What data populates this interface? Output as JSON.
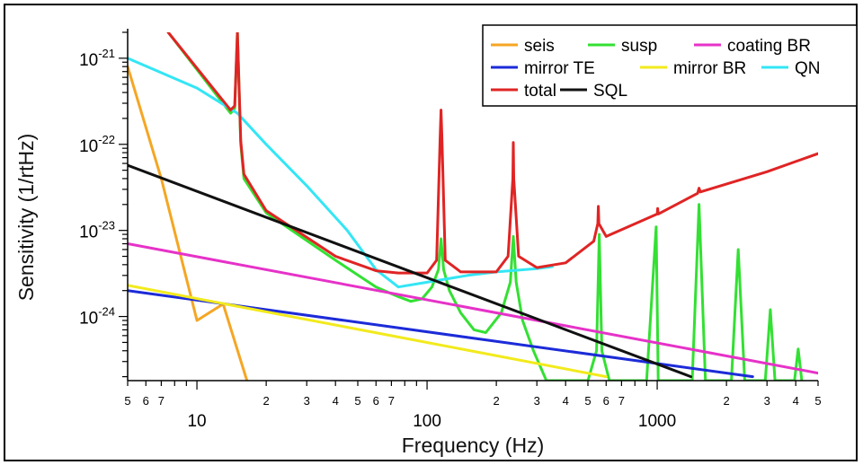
{
  "chart_data": {
    "type": "line",
    "xlabel": "Frequency (Hz)",
    "ylabel": "Sensitivity (1/rtHz)",
    "xscale": "log",
    "yscale": "log",
    "xlim": [
      5,
      5000
    ],
    "ylim": [
      1.8e-25,
      2e-21
    ],
    "grid": false,
    "legend_position": "top-right",
    "x_tick_labels": [
      {
        "value": 5,
        "label": "5",
        "major": false
      },
      {
        "value": 6,
        "label": "6",
        "major": false
      },
      {
        "value": 7,
        "label": "7",
        "major": false
      },
      {
        "value": 10,
        "label": "10",
        "major": true
      },
      {
        "value": 20,
        "label": "2",
        "major": false
      },
      {
        "value": 30,
        "label": "3",
        "major": false
      },
      {
        "value": 40,
        "label": "4",
        "major": false
      },
      {
        "value": 50,
        "label": "5",
        "major": false
      },
      {
        "value": 60,
        "label": "6",
        "major": false
      },
      {
        "value": 70,
        "label": "7",
        "major": false
      },
      {
        "value": 100,
        "label": "100",
        "major": true
      },
      {
        "value": 200,
        "label": "2",
        "major": false
      },
      {
        "value": 300,
        "label": "3",
        "major": false
      },
      {
        "value": 400,
        "label": "4",
        "major": false
      },
      {
        "value": 500,
        "label": "5",
        "major": false
      },
      {
        "value": 600,
        "label": "6",
        "major": false
      },
      {
        "value": 700,
        "label": "7",
        "major": false
      },
      {
        "value": 1000,
        "label": "1000",
        "major": true
      },
      {
        "value": 2000,
        "label": "2",
        "major": false
      },
      {
        "value": 3000,
        "label": "3",
        "major": false
      },
      {
        "value": 4000,
        "label": "4",
        "major": false
      },
      {
        "value": 5000,
        "label": "5",
        "major": false
      }
    ],
    "y_tick_labels": [
      {
        "exp": -21,
        "mantissa": "10",
        "power": "-21"
      },
      {
        "exp": -22,
        "mantissa": "10",
        "power": "-22"
      },
      {
        "exp": -23,
        "mantissa": "10",
        "power": "-23"
      },
      {
        "exp": -24,
        "mantissa": "10",
        "power": "-24"
      }
    ],
    "series": [
      {
        "name": "seis",
        "color": "#f5a623",
        "x": [
          5,
          7,
          10,
          13,
          16.5
        ],
        "y": [
          8e-22,
          4e-23,
          9e-25,
          1.4e-24,
          1.8e-25
        ]
      },
      {
        "name": "susp",
        "color": "#33e033",
        "x": [
          7.5,
          14,
          14.6,
          15,
          15.5,
          16,
          20,
          40,
          60,
          75,
          85,
          95,
          105,
          112,
          115,
          118,
          125,
          140,
          160,
          180,
          210,
          230,
          237,
          244,
          260,
          290,
          330,
          500,
          545,
          560,
          575,
          620,
          900,
          990,
          1010,
          1100,
          1420,
          1520,
          1620,
          2100,
          2250,
          2400,
          2950,
          3100,
          3250,
          3950,
          4100,
          4250
        ],
        "y": [
          2e-21,
          2.3e-22,
          2.6e-22,
          2e-21,
          1e-22,
          4e-23,
          1.6e-23,
          4.5e-24,
          2.2e-24,
          1.7e-24,
          1.5e-24,
          1.6e-24,
          2.2e-24,
          3.5e-24,
          8e-24,
          3.5e-24,
          2e-24,
          1.1e-24,
          7e-25,
          6.5e-25,
          1.1e-24,
          2.5e-24,
          8.5e-24,
          2.5e-24,
          9e-25,
          4e-25,
          1.8e-25,
          1.8e-25,
          4e-25,
          9e-24,
          4e-25,
          1.8e-25,
          1.8e-25,
          1.1e-23,
          1.8e-25,
          1.8e-25,
          1.8e-25,
          2e-23,
          1.8e-25,
          1.8e-25,
          6e-24,
          1.8e-25,
          1.8e-25,
          1.2e-24,
          1.8e-25,
          1.8e-25,
          4.2e-25,
          1.8e-25
        ]
      },
      {
        "name": "coating BR",
        "color": "#e632c8",
        "x": [
          5,
          5000
        ],
        "y": [
          7e-24,
          2.2e-25
        ]
      },
      {
        "name": "mirror TE",
        "color": "#1c2bd8",
        "x": [
          5,
          2600
        ],
        "y": [
          2e-24,
          2e-25
        ]
      },
      {
        "name": "mirror BR",
        "color": "#f2ea1c",
        "x": [
          5,
          600
        ],
        "y": [
          2.3e-24,
          2e-25
        ]
      },
      {
        "name": "QN",
        "color": "#33e6f5",
        "x": [
          5,
          10,
          15,
          20,
          30,
          45,
          60,
          75,
          100,
          150,
          200,
          300,
          350
        ],
        "y": [
          1e-21,
          4.5e-22,
          2.3e-22,
          1e-22,
          3.3e-23,
          1e-23,
          3.5e-24,
          2.2e-24,
          2.5e-24,
          3e-24,
          3.3e-24,
          3.6e-24,
          3.8e-24
        ]
      },
      {
        "name": "total",
        "color": "#e02424",
        "x": [
          7.5,
          14,
          14.6,
          15,
          15.5,
          16,
          20,
          40,
          60,
          75,
          100,
          110,
          114,
          115,
          116,
          120,
          140,
          200,
          225,
          236,
          237,
          238,
          250,
          300,
          400,
          530,
          552,
          555,
          558,
          600,
          1000,
          1005,
          1010,
          1500,
          1520,
          1540,
          3000,
          5000
        ],
        "y": [
          2e-21,
          2.5e-22,
          2.8e-22,
          2e-21,
          1.1e-22,
          4.5e-23,
          1.7e-23,
          5e-24,
          3.4e-24,
          3.2e-24,
          3.2e-24,
          4.5e-24,
          1.2e-22,
          2.5e-22,
          1.2e-22,
          4.5e-24,
          3.3e-24,
          3.3e-24,
          5e-24,
          4e-23,
          1.05e-22,
          4e-23,
          5e-24,
          3.7e-24,
          4.2e-24,
          7.5e-24,
          1.2e-23,
          1.9e-23,
          1.2e-23,
          8.5e-24,
          1.55e-23,
          1.8e-23,
          1.55e-23,
          2.7e-23,
          3.1e-23,
          2.8e-23,
          4.8e-23,
          7.8e-23
        ]
      },
      {
        "name": "SQL",
        "color": "#111111",
        "x": [
          5,
          1400
        ],
        "y": [
          5.7e-23,
          2e-25
        ]
      }
    ],
    "legend": [
      {
        "name": "seis",
        "color": "#f5a623"
      },
      {
        "name": "susp",
        "color": "#33e033"
      },
      {
        "name": "coating BR",
        "color": "#e632c8"
      },
      {
        "name": "mirror TE",
        "color": "#1c2bd8"
      },
      {
        "name": "mirror BR",
        "color": "#f2ea1c"
      },
      {
        "name": "QN",
        "color": "#33e6f5"
      },
      {
        "name": "total",
        "color": "#e02424"
      },
      {
        "name": "SQL",
        "color": "#111111"
      }
    ]
  }
}
